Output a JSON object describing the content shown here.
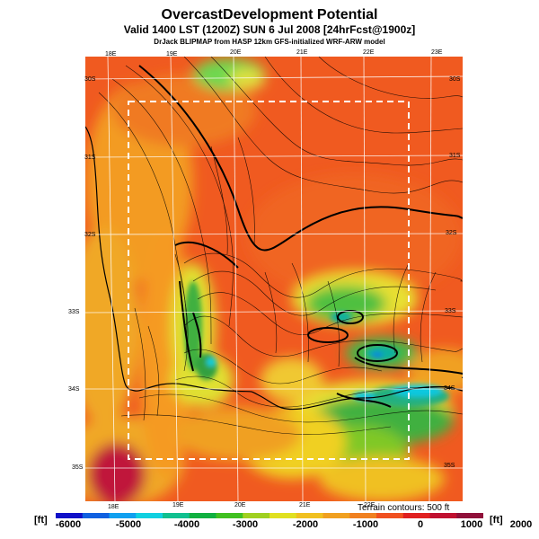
{
  "title": {
    "main": "OvercastDevelopment Potential",
    "valid": "Valid 1400 LST (1200Z) SUN 6 Jul 2008 [24hrFcst@1900z]",
    "credit": "DrJack BLIPMAP from HASP 12km GFS-initialized WRF-ARW model"
  },
  "map": {
    "lon_labels_top": [
      "18E",
      "19E",
      "20E",
      "21E",
      "22E",
      "23E"
    ],
    "lon_labels_bottom": [
      "18E",
      "19E",
      "20E",
      "21E",
      "22E"
    ],
    "lat_labels_left": [
      "30S",
      "31S",
      "32S",
      "33S",
      "34S",
      "35S"
    ],
    "lat_labels_right": [
      "30S",
      "31S",
      "32S",
      "33S",
      "34S",
      "35S"
    ],
    "terrain_note": "Terrain contours: 500 ft"
  },
  "colorbar": {
    "unit_left": "[ft]",
    "unit_right": "[ft]",
    "tick_labels": [
      "-6000",
      "-5000",
      "-4000",
      "-3000",
      "-2000",
      "-1000",
      "0",
      "1000",
      "2000"
    ],
    "colors": [
      "#1010c8",
      "#1060e0",
      "#10a0f0",
      "#10d0e0",
      "#10c090",
      "#10b040",
      "#40c020",
      "#a0d020",
      "#e0e020",
      "#f0c020",
      "#f0a020",
      "#f08020",
      "#f05020",
      "#e02020",
      "#c01030",
      "#90103a"
    ]
  }
}
